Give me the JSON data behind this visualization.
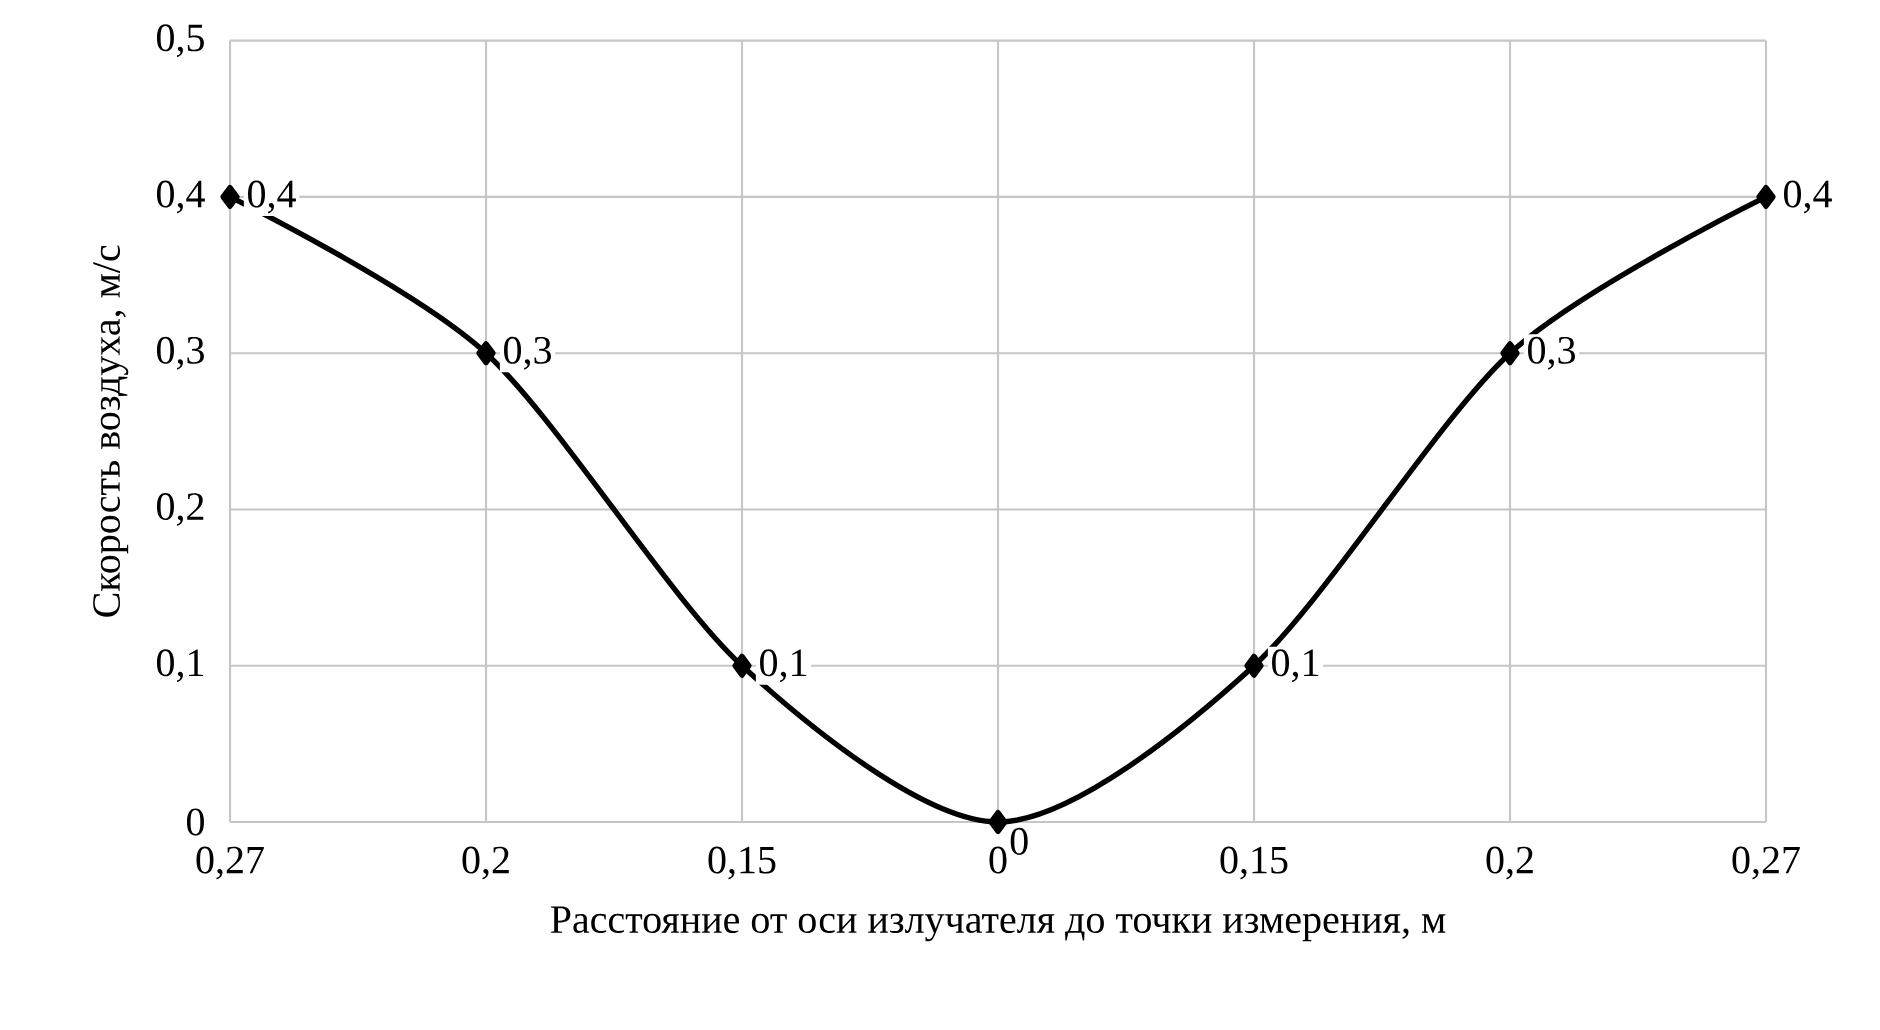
{
  "chart_data": {
    "type": "line",
    "xlabel": "Расстояние от оси излучателя до точки измерения, м",
    "ylabel": "Скорость воздуха, м/с",
    "categories": [
      "0,27",
      "0,2",
      "0,15",
      "0",
      "0,15",
      "0,2",
      "0,27"
    ],
    "values": [
      0.4,
      0.3,
      0.1,
      0,
      0.1,
      0.3,
      0.4
    ],
    "value_labels": [
      "0,4",
      "0,3",
      "0,1",
      "0",
      "0,1",
      "0,3",
      "0,4"
    ],
    "color": "#000000",
    "ylim": [
      0,
      0.5
    ],
    "yticks": [
      {
        "value": 0,
        "label": "0"
      },
      {
        "value": 0.1,
        "label": "0,1"
      },
      {
        "value": 0.2,
        "label": "0,2"
      },
      {
        "value": 0.3,
        "label": "0,3"
      },
      {
        "value": 0.4,
        "label": "0,4"
      },
      {
        "value": 0.5,
        "label": "0,5"
      }
    ],
    "grid": true,
    "marker": "diamond",
    "line_style": "solid"
  }
}
